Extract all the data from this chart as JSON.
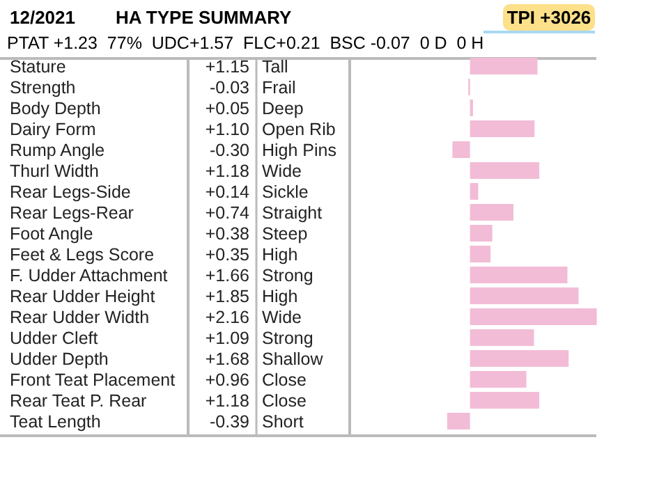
{
  "chart_data": {
    "type": "bar",
    "orientation": "horizontal",
    "title": "HA TYPE SUMMARY",
    "subtitle": "PTAT +1.23  77%  UDC+1.57  FLC+0.21  BSC -0.07  0 D  0 H",
    "categories": [
      "Stature",
      "Strength",
      "Body Depth",
      "Dairy Form",
      "Rump Angle",
      "Thurl Width",
      "Rear Legs-Side",
      "Rear Legs-Rear",
      "Foot Angle",
      "Feet & Legs Score",
      "F. Udder Attachment",
      "Rear Udder Height",
      "Rear Udder Width",
      "Udder Cleft",
      "Udder Depth",
      "Front Teat Placement",
      "Rear Teat P. Rear",
      "Teat Length"
    ],
    "values": [
      1.15,
      -0.03,
      0.05,
      1.1,
      -0.3,
      1.18,
      0.14,
      0.74,
      0.38,
      0.35,
      1.66,
      1.85,
      2.16,
      1.09,
      1.68,
      0.96,
      1.18,
      -0.39
    ],
    "value_labels": [
      "+1.15",
      "-0.03",
      "+0.05",
      "+1.10",
      "-0.30",
      "+1.18",
      "+0.14",
      "+0.74",
      "+0.38",
      "+0.35",
      "+1.66",
      "+1.85",
      "+2.16",
      "+1.09",
      "+1.68",
      "+0.96",
      "+1.18",
      "-0.39"
    ],
    "color": "#f2bcd6",
    "xlim": [
      -2.05,
      2.2
    ],
    "tick_labels": false,
    "annotations": [
      "12/2021",
      "TPI +3026",
      "Tall",
      "Frail",
      "Deep",
      "Open Rib",
      "High Pins",
      "Wide",
      "Sickle",
      "Straight",
      "Steep",
      "High",
      "Strong",
      "High",
      "Wide",
      "Strong",
      "Shallow",
      "Close",
      "Close",
      "Short"
    ]
  }
}
